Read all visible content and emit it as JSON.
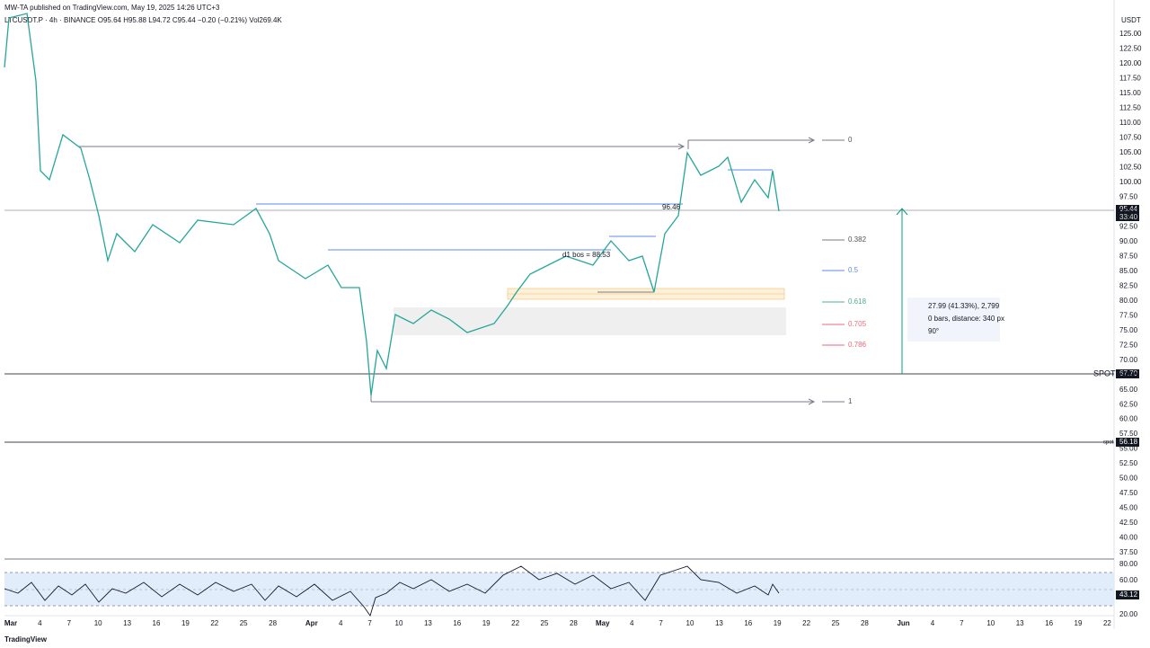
{
  "header": {
    "published": "MW-TA published on TradingView.com, May 19, 2025 14:26 UTC+3",
    "symbol": "LTCUSDT.P · 4h · BINANCE  O95.64  H95.88  L94.72  C95.44  −0.20 (−0.21%)  Vol269.4K"
  },
  "price_axis": {
    "currency": "USDT",
    "labels": [
      "125.00",
      "122.50",
      "120.00",
      "117.50",
      "115.00",
      "112.50",
      "110.00",
      "107.50",
      "105.00",
      "102.50",
      "100.00",
      "97.50",
      "95.00",
      "92.50",
      "90.00",
      "87.50",
      "85.00",
      "82.50",
      "80.00",
      "77.50",
      "75.00",
      "72.50",
      "70.00",
      "67.50",
      "65.00",
      "62.50",
      "60.00",
      "57.50",
      "55.00",
      "52.50",
      "50.00",
      "47.50",
      "45.00",
      "42.50",
      "40.00",
      "37.50"
    ]
  },
  "price_tags": {
    "last": "95.44",
    "countdown": "33:40",
    "spot_label": "SPOT",
    "spot": "67.70",
    "spot2_label": "spot",
    "spot2": "56.18"
  },
  "rsi_axis": {
    "labels": [
      "80.00",
      "60.00",
      "20.00"
    ],
    "current": "43.12"
  },
  "time_axis": {
    "labels": [
      "Mar",
      "4",
      "7",
      "10",
      "13",
      "16",
      "19",
      "22",
      "25",
      "28",
      "Apr",
      "4",
      "7",
      "10",
      "13",
      "16",
      "19",
      "22",
      "25",
      "28",
      "May",
      "4",
      "7",
      "10",
      "13",
      "16",
      "19",
      "22",
      "25",
      "28",
      "Jun",
      "4",
      "7",
      "10",
      "13",
      "16",
      "19",
      "22"
    ]
  },
  "fib": {
    "levels": [
      "0",
      "0.382",
      "0.5",
      "0.618",
      "0.705",
      "0.786",
      "1"
    ]
  },
  "annotations": {
    "level": "96.46",
    "bos": "d1 bos = 88.53"
  },
  "measure": {
    "price": "27.99 (41.33%), 2,799",
    "bars": "0 bars, distance: 340 px",
    "angle": "90°"
  },
  "footer": {
    "brand": "TradingView"
  }
}
